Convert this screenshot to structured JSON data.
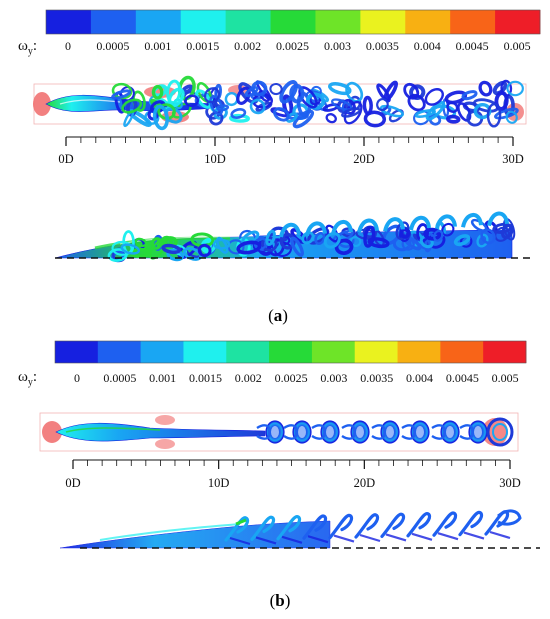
{
  "colorbar": {
    "symbol": "ω",
    "subscript": "y",
    "colon": ":",
    "colors": [
      "#1620e0",
      "#1e60f0",
      "#19a6f3",
      "#1ff0ee",
      "#1ee3a2",
      "#26da38",
      "#6ee428",
      "#eaf21f",
      "#f8b012",
      "#f86418",
      "#ee1e28"
    ],
    "labels": [
      "0",
      "0.0005",
      "0.001",
      "0.0015",
      "0.002",
      "0.0025",
      "0.003",
      "0.0035",
      "0.004",
      "0.0045",
      "0.005"
    ]
  },
  "axis": {
    "ticks": [
      "0D",
      "10D",
      "20D",
      "30D"
    ]
  },
  "panels": [
    {
      "id": "a",
      "caption_open": "(",
      "caption_letter": "a",
      "caption_close": ")"
    },
    {
      "id": "b",
      "caption_open": "(",
      "caption_letter": "b",
      "caption_close": ")"
    }
  ]
}
